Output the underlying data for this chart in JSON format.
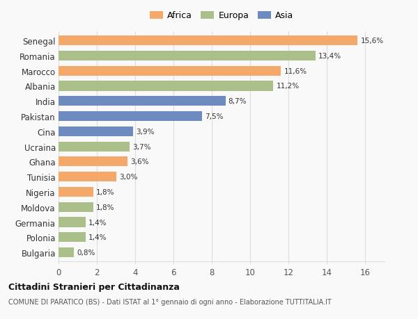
{
  "countries": [
    "Senegal",
    "Romania",
    "Marocco",
    "Albania",
    "India",
    "Pakistan",
    "Cina",
    "Ucraina",
    "Ghana",
    "Tunisia",
    "Nigeria",
    "Moldova",
    "Germania",
    "Polonia",
    "Bulgaria"
  ],
  "values": [
    15.6,
    13.4,
    11.6,
    11.2,
    8.7,
    7.5,
    3.9,
    3.7,
    3.6,
    3.0,
    1.8,
    1.8,
    1.4,
    1.4,
    0.8
  ],
  "continents": [
    "Africa",
    "Europa",
    "Africa",
    "Europa",
    "Asia",
    "Asia",
    "Asia",
    "Europa",
    "Africa",
    "Africa",
    "Africa",
    "Europa",
    "Europa",
    "Europa",
    "Europa"
  ],
  "continent_colors": {
    "Africa": "#F4A96A",
    "Europa": "#AABF8A",
    "Asia": "#6E8BBF"
  },
  "legend_labels": [
    "Africa",
    "Europa",
    "Asia"
  ],
  "legend_colors": [
    "#F4A96A",
    "#AABF8A",
    "#6E8BBF"
  ],
  "xlim": [
    0,
    17
  ],
  "xticks": [
    0,
    2,
    4,
    6,
    8,
    10,
    12,
    14,
    16
  ],
  "title": "Cittadini Stranieri per Cittadinanza",
  "subtitle": "COMUNE DI PARATICO (BS) - Dati ISTAT al 1° gennaio di ogni anno - Elaborazione TUTTITALIA.IT",
  "bg_color": "#f9f9f9",
  "grid_color": "#dddddd",
  "bar_height": 0.65
}
